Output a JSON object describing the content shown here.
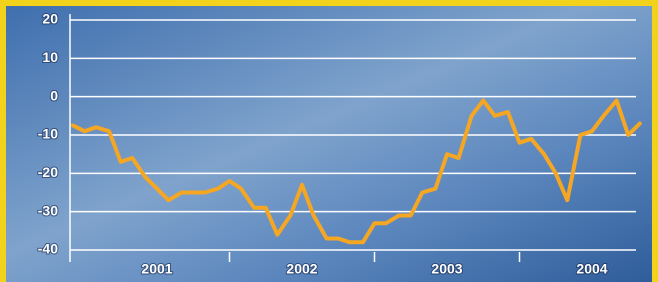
{
  "chart_data": {
    "type": "line",
    "x": [
      2000.92,
      2001.0,
      2001.08,
      2001.17,
      2001.25,
      2001.33,
      2001.42,
      2001.5,
      2001.58,
      2001.67,
      2001.75,
      2001.83,
      2001.92,
      2002.0,
      2002.08,
      2002.17,
      2002.25,
      2002.33,
      2002.42,
      2002.5,
      2002.58,
      2002.67,
      2002.75,
      2002.83,
      2002.92,
      2003.0,
      2003.08,
      2003.17,
      2003.25,
      2003.33,
      2003.42,
      2003.5,
      2003.58,
      2003.67,
      2003.75,
      2003.83,
      2003.92,
      2004.0,
      2004.08,
      2004.17,
      2004.25,
      2004.33,
      2004.42,
      2004.5,
      2004.58,
      2004.67,
      2004.75,
      2004.83
    ],
    "values": [
      -7.5,
      -9,
      -8,
      -9,
      -17,
      -16,
      -21,
      -24,
      -27,
      -25,
      -25,
      -25,
      -24,
      -22,
      -24,
      -29,
      -29,
      -36,
      -31,
      -23,
      -31,
      -37,
      -37,
      -38,
      -38,
      -33,
      -33,
      -31,
      -31,
      -25,
      -24,
      -15,
      -16,
      -5,
      -1,
      -5,
      -4,
      -12,
      -11,
      -15,
      -20,
      -27,
      -10,
      -9,
      -5,
      -1,
      -10,
      -7
    ],
    "color": "#f5a623",
    "xlim": [
      2000.9,
      2004.9
    ],
    "xticks": [
      {
        "value": 2001.5,
        "label": "2001"
      },
      {
        "value": 2002.5,
        "label": "2002"
      },
      {
        "value": 2003.5,
        "label": "2003"
      },
      {
        "value": 2004.5,
        "label": "2004"
      }
    ],
    "ylim": [
      -40,
      20
    ],
    "yticks": [
      20,
      10,
      0,
      -10,
      -20,
      -30,
      -40
    ],
    "grid": true
  }
}
